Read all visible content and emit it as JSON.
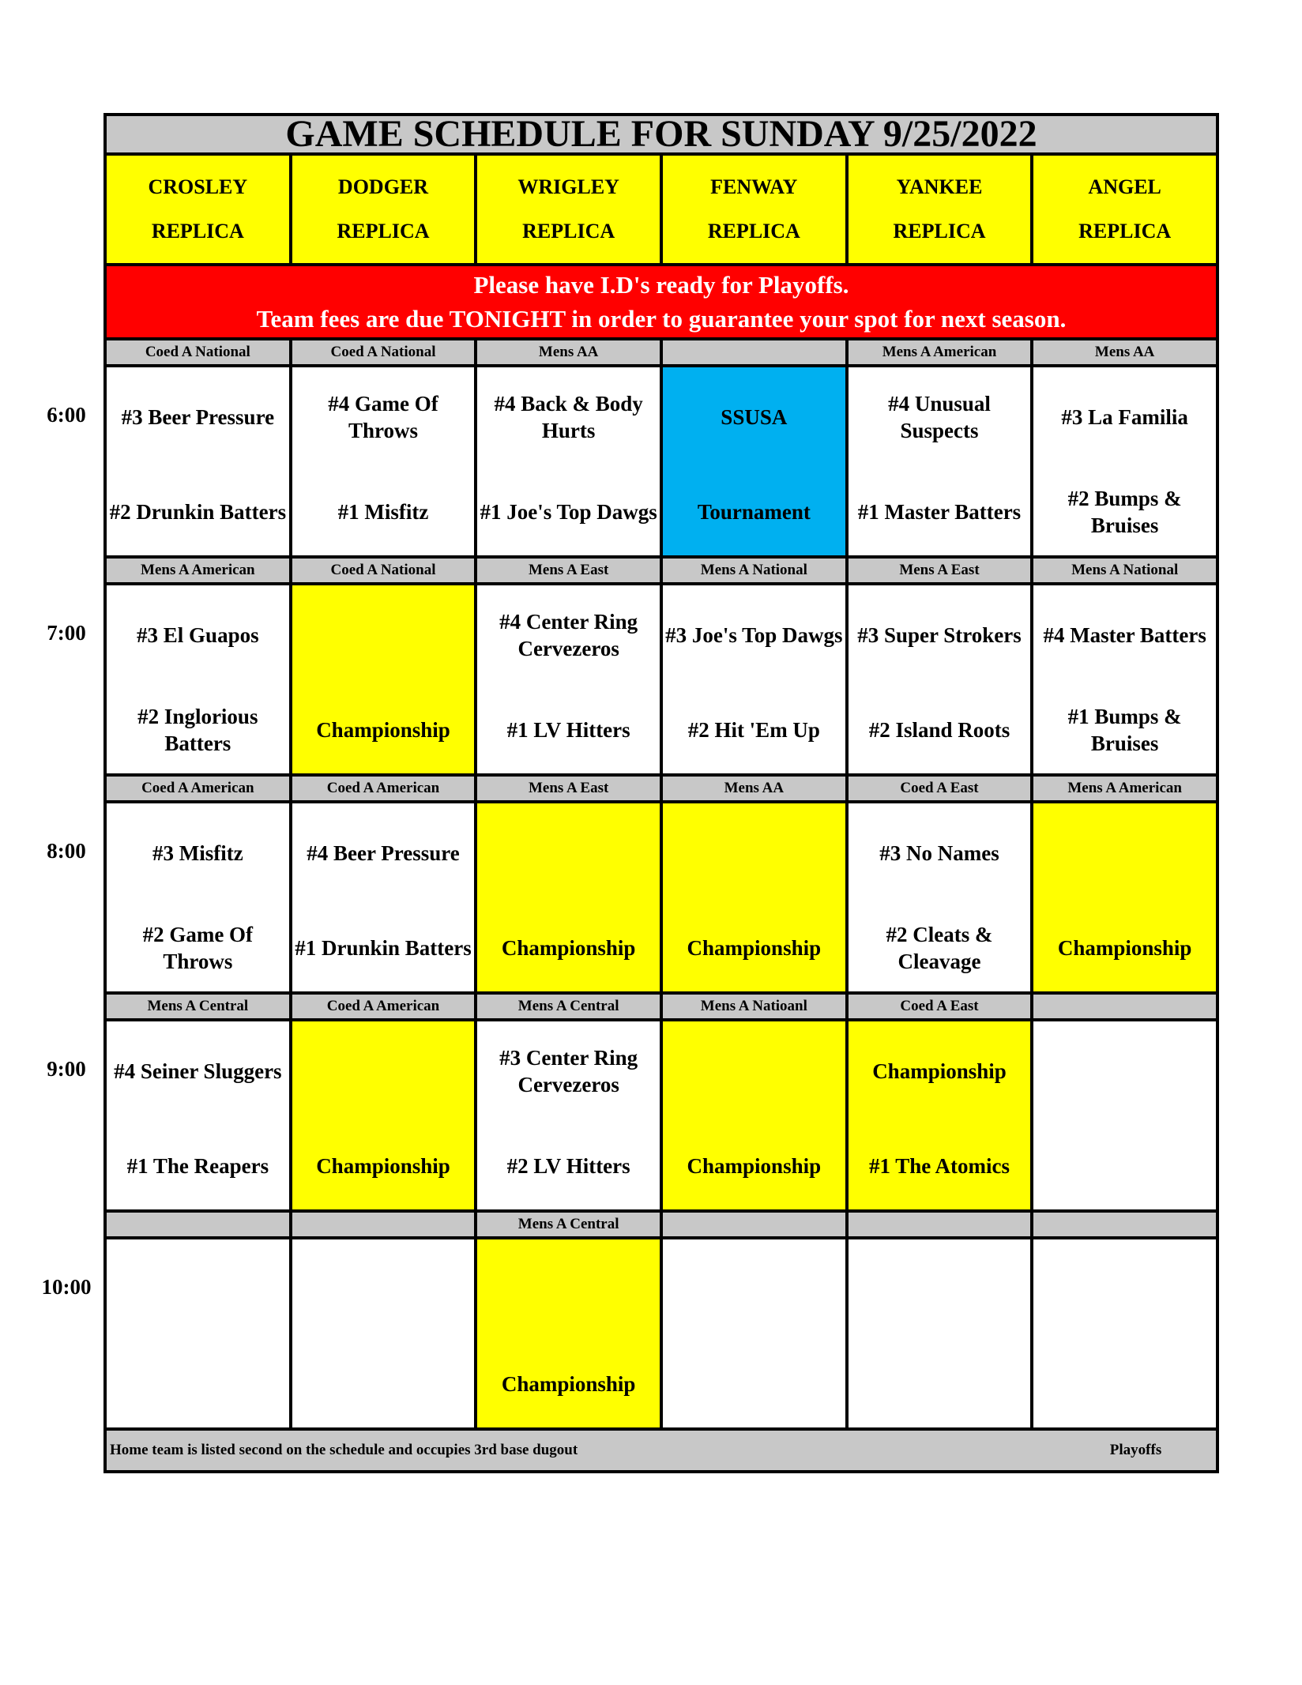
{
  "title": "GAME SCHEDULE FOR SUNDAY 9/25/2022",
  "fields": [
    {
      "name": "CROSLEY",
      "sub": "REPLICA"
    },
    {
      "name": "DODGER",
      "sub": "REPLICA"
    },
    {
      "name": "WRIGLEY",
      "sub": "REPLICA"
    },
    {
      "name": "FENWAY",
      "sub": "REPLICA"
    },
    {
      "name": "YANKEE",
      "sub": "REPLICA"
    },
    {
      "name": "ANGEL",
      "sub": "REPLICA"
    }
  ],
  "notice": {
    "line1": "Please have I.D's ready for Playoffs.",
    "line2": "Team fees are due TONIGHT in order to guarantee your spot for next season."
  },
  "colors": {
    "yellow": "#ffff00",
    "blue": "#00b0f0",
    "white": "#ffffff",
    "red": "#ff0000",
    "gray": "#c8c8c8"
  },
  "slots": [
    {
      "time": "6:00",
      "divisions": [
        "Coed A National",
        "Coed A National",
        "Mens AA",
        "",
        "Mens A American",
        "Mens AA"
      ],
      "games": [
        {
          "top": "#3 Beer Pressure",
          "bottom": "#2 Drunkin Batters",
          "bg": "white"
        },
        {
          "top": "#4 Game Of Throws",
          "bottom": "#1 Misfitz",
          "bg": "white"
        },
        {
          "top": "#4 Back & Body Hurts",
          "bottom": "#1 Joe's Top Dawgs",
          "bg": "white"
        },
        {
          "top": "SSUSA",
          "bottom": "Tournament",
          "bg": "blue"
        },
        {
          "top": "#4 Unusual Suspects",
          "bottom": "#1 Master Batters",
          "bg": "white"
        },
        {
          "top": "#3 La Familia",
          "bottom": "#2 Bumps & Bruises",
          "bg": "white"
        }
      ]
    },
    {
      "time": "7:00",
      "divisions": [
        "Mens A American",
        "Coed A National",
        "Mens A East",
        "Mens A National",
        "Mens A East",
        "Mens A National"
      ],
      "games": [
        {
          "top": "#3 El Guapos",
          "bottom": "#2 Inglorious Batters",
          "bg": "white"
        },
        {
          "top": "",
          "bottom": "Championship",
          "bg": "yellow"
        },
        {
          "top": "#4 Center Ring Cervezeros",
          "bottom": "#1 LV Hitters",
          "bg": "white"
        },
        {
          "top": "#3 Joe's Top Dawgs",
          "bottom": "#2 Hit 'Em Up",
          "bg": "white"
        },
        {
          "top": "#3 Super Strokers",
          "bottom": "#2 Island Roots",
          "bg": "white"
        },
        {
          "top": "#4 Master Batters",
          "bottom": "#1 Bumps & Bruises",
          "bg": "white"
        }
      ]
    },
    {
      "time": "8:00",
      "divisions": [
        "Coed A American",
        "Coed A American",
        "Mens A East",
        "Mens AA",
        "Coed A East",
        "Mens A American"
      ],
      "games": [
        {
          "top": "#3 Misfitz",
          "bottom": "#2 Game Of Throws",
          "bg": "white"
        },
        {
          "top": "#4 Beer Pressure",
          "bottom": "#1 Drunkin Batters",
          "bg": "white"
        },
        {
          "top": "",
          "bottom": "Championship",
          "bg": "yellow"
        },
        {
          "top": "",
          "bottom": "Championship",
          "bg": "yellow"
        },
        {
          "top": "#3 No Names",
          "bottom": "#2 Cleats & Cleavage",
          "bg": "white"
        },
        {
          "top": "",
          "bottom": "Championship",
          "bg": "yellow"
        }
      ]
    },
    {
      "time": "9:00",
      "divisions": [
        "Mens A Central",
        "Coed A American",
        "Mens A Central",
        "Mens A Natioanl",
        "Coed A East",
        ""
      ],
      "games": [
        {
          "top": "#4 Seiner Sluggers",
          "bottom": "#1 The Reapers",
          "bg": "white"
        },
        {
          "top": "",
          "bottom": "Championship",
          "bg": "yellow"
        },
        {
          "top": "#3 Center Ring Cervezeros",
          "bottom": "#2 LV Hitters",
          "bg": "white"
        },
        {
          "top": "",
          "bottom": "Championship",
          "bg": "yellow"
        },
        {
          "top": "Championship",
          "bottom": "#1 The Atomics",
          "bg": "yellow"
        },
        {
          "top": "",
          "bottom": "",
          "bg": "white"
        }
      ]
    },
    {
      "time": "10:00",
      "divisions": [
        "",
        "",
        "Mens A Central",
        "",
        "",
        ""
      ],
      "games": [
        {
          "top": "",
          "bottom": "",
          "bg": "white"
        },
        {
          "top": "",
          "bottom": "",
          "bg": "white"
        },
        {
          "top": "",
          "bottom": "Championship",
          "bg": "yellow"
        },
        {
          "top": "",
          "bottom": "",
          "bg": "white"
        },
        {
          "top": "",
          "bottom": "",
          "bg": "white"
        },
        {
          "top": "",
          "bottom": "",
          "bg": "white"
        }
      ]
    }
  ],
  "footer": {
    "note": "Home team is listed second on the schedule and occupies 3rd base dugout",
    "label": "Playoffs"
  }
}
